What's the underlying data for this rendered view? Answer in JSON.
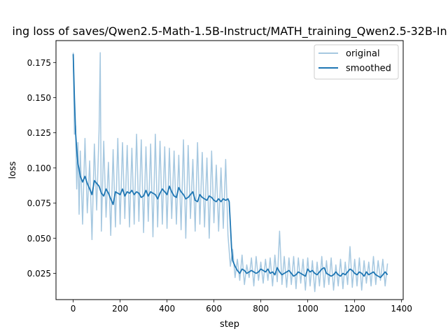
{
  "chart_data": {
    "type": "line",
    "title": "ing loss of saves/Qwen2.5-Math-1.5B-Instruct/MATH_training_Qwen2.5-32B-In",
    "xlabel": "step",
    "ylabel": "loss",
    "xlim": [
      -73.5,
      1407
    ],
    "ylim": [
      0.0063,
      0.1906
    ],
    "xticks": [
      0,
      200,
      400,
      600,
      800,
      1000,
      1200,
      1400
    ],
    "yticks": [
      0.025,
      0.05,
      0.075,
      0.1,
      0.125,
      0.15,
      0.175
    ],
    "xtick_labels": [
      "0",
      "200",
      "400",
      "600",
      "800",
      "1000",
      "1200",
      "1400"
    ],
    "ytick_labels": [
      "0.025",
      "0.050",
      "0.075",
      "0.100",
      "0.125",
      "0.150",
      "0.175"
    ],
    "grid": false,
    "legend_position": "top-right",
    "series": [
      {
        "name": "original",
        "color": "#a6c8e0",
        "x": [
          0,
          5,
          10,
          15,
          20,
          25,
          30,
          40,
          50,
          60,
          70,
          80,
          90,
          100,
          110,
          115,
          120,
          130,
          140,
          150,
          160,
          170,
          180,
          190,
          200,
          210,
          220,
          230,
          240,
          250,
          260,
          270,
          280,
          290,
          300,
          310,
          320,
          330,
          340,
          350,
          360,
          370,
          380,
          390,
          400,
          410,
          420,
          430,
          440,
          450,
          460,
          470,
          480,
          490,
          500,
          510,
          520,
          530,
          540,
          550,
          560,
          570,
          580,
          590,
          600,
          610,
          620,
          630,
          640,
          650,
          660,
          670,
          680,
          690,
          700,
          710,
          720,
          730,
          740,
          750,
          760,
          770,
          780,
          790,
          800,
          810,
          820,
          830,
          840,
          850,
          860,
          870,
          880,
          890,
          900,
          910,
          920,
          930,
          940,
          950,
          960,
          970,
          980,
          990,
          1000,
          1010,
          1020,
          1030,
          1040,
          1050,
          1060,
          1070,
          1080,
          1090,
          1100,
          1110,
          1120,
          1130,
          1140,
          1150,
          1160,
          1170,
          1180,
          1190,
          1200,
          1210,
          1220,
          1230,
          1240,
          1250,
          1260,
          1270,
          1280,
          1290,
          1300,
          1310,
          1320,
          1330,
          1340
        ],
        "values": [
          0.182,
          0.124,
          0.13,
          0.085,
          0.118,
          0.067,
          0.112,
          0.06,
          0.121,
          0.068,
          0.105,
          0.049,
          0.117,
          0.07,
          0.126,
          0.182,
          0.055,
          0.119,
          0.065,
          0.104,
          0.052,
          0.113,
          0.058,
          0.121,
          0.06,
          0.118,
          0.064,
          0.116,
          0.058,
          0.114,
          0.06,
          0.124,
          0.062,
          0.12,
          0.054,
          0.115,
          0.062,
          0.117,
          0.051,
          0.124,
          0.058,
          0.119,
          0.06,
          0.115,
          0.057,
          0.114,
          0.064,
          0.112,
          0.06,
          0.109,
          0.056,
          0.12,
          0.05,
          0.116,
          0.064,
          0.106,
          0.055,
          0.118,
          0.06,
          0.111,
          0.058,
          0.107,
          0.05,
          0.112,
          0.061,
          0.102,
          0.055,
          0.1,
          0.057,
          0.106,
          0.052,
          0.03,
          0.042,
          0.022,
          0.035,
          0.02,
          0.038,
          0.017,
          0.031,
          0.022,
          0.036,
          0.016,
          0.037,
          0.02,
          0.033,
          0.018,
          0.035,
          0.02,
          0.036,
          0.016,
          0.038,
          0.019,
          0.055,
          0.017,
          0.037,
          0.015,
          0.036,
          0.017,
          0.037,
          0.014,
          0.036,
          0.018,
          0.035,
          0.013,
          0.036,
          0.016,
          0.034,
          0.012,
          0.033,
          0.016,
          0.037,
          0.015,
          0.034,
          0.017,
          0.036,
          0.013,
          0.031,
          0.016,
          0.035,
          0.014,
          0.033,
          0.017,
          0.044,
          0.015,
          0.035,
          0.016,
          0.036,
          0.013,
          0.034,
          0.018,
          0.033,
          0.016,
          0.037,
          0.017,
          0.034,
          0.02,
          0.035,
          0.016,
          0.032
        ]
      },
      {
        "name": "smoothed",
        "color": "#1f77b4",
        "x": [
          0,
          5,
          10,
          15,
          20,
          25,
          30,
          40,
          50,
          60,
          70,
          80,
          90,
          100,
          110,
          120,
          130,
          140,
          150,
          160,
          170,
          180,
          190,
          200,
          210,
          220,
          230,
          240,
          250,
          260,
          270,
          280,
          290,
          300,
          310,
          320,
          330,
          340,
          350,
          360,
          370,
          380,
          390,
          400,
          410,
          420,
          430,
          440,
          450,
          460,
          470,
          480,
          490,
          500,
          510,
          520,
          530,
          540,
          550,
          560,
          570,
          580,
          590,
          600,
          610,
          620,
          630,
          640,
          650,
          660,
          665,
          670,
          675,
          680,
          690,
          700,
          710,
          720,
          730,
          740,
          750,
          760,
          770,
          780,
          790,
          800,
          810,
          820,
          830,
          840,
          850,
          860,
          870,
          880,
          890,
          900,
          910,
          920,
          930,
          940,
          950,
          960,
          970,
          980,
          990,
          1000,
          1010,
          1020,
          1030,
          1040,
          1050,
          1060,
          1070,
          1080,
          1090,
          1100,
          1110,
          1120,
          1130,
          1140,
          1150,
          1160,
          1170,
          1180,
          1190,
          1200,
          1210,
          1220,
          1230,
          1240,
          1250,
          1260,
          1270,
          1280,
          1290,
          1300,
          1310,
          1320,
          1330,
          1340
        ],
        "values": [
          0.181,
          0.15,
          0.125,
          0.113,
          0.103,
          0.099,
          0.094,
          0.09,
          0.094,
          0.089,
          0.085,
          0.081,
          0.091,
          0.089,
          0.087,
          0.082,
          0.08,
          0.085,
          0.082,
          0.078,
          0.074,
          0.083,
          0.082,
          0.081,
          0.085,
          0.08,
          0.083,
          0.082,
          0.084,
          0.081,
          0.083,
          0.082,
          0.079,
          0.08,
          0.084,
          0.08,
          0.083,
          0.082,
          0.081,
          0.078,
          0.082,
          0.085,
          0.083,
          0.081,
          0.087,
          0.083,
          0.08,
          0.079,
          0.086,
          0.083,
          0.081,
          0.078,
          0.079,
          0.081,
          0.083,
          0.077,
          0.076,
          0.081,
          0.079,
          0.078,
          0.077,
          0.08,
          0.079,
          0.077,
          0.076,
          0.078,
          0.076,
          0.078,
          0.077,
          0.078,
          0.076,
          0.06,
          0.043,
          0.034,
          0.03,
          0.027,
          0.025,
          0.028,
          0.027,
          0.025,
          0.026,
          0.027,
          0.026,
          0.025,
          0.026,
          0.028,
          0.027,
          0.026,
          0.028,
          0.025,
          0.026,
          0.024,
          0.029,
          0.026,
          0.024,
          0.025,
          0.026,
          0.027,
          0.025,
          0.023,
          0.024,
          0.026,
          0.025,
          0.024,
          0.023,
          0.028,
          0.026,
          0.027,
          0.025,
          0.024,
          0.026,
          0.028,
          0.029,
          0.025,
          0.024,
          0.023,
          0.024,
          0.026,
          0.024,
          0.023,
          0.025,
          0.024,
          0.026,
          0.028,
          0.027,
          0.025,
          0.024,
          0.026,
          0.025,
          0.023,
          0.026,
          0.024,
          0.025,
          0.026,
          0.024,
          0.023,
          0.022,
          0.024,
          0.026,
          0.024
        ]
      }
    ]
  }
}
